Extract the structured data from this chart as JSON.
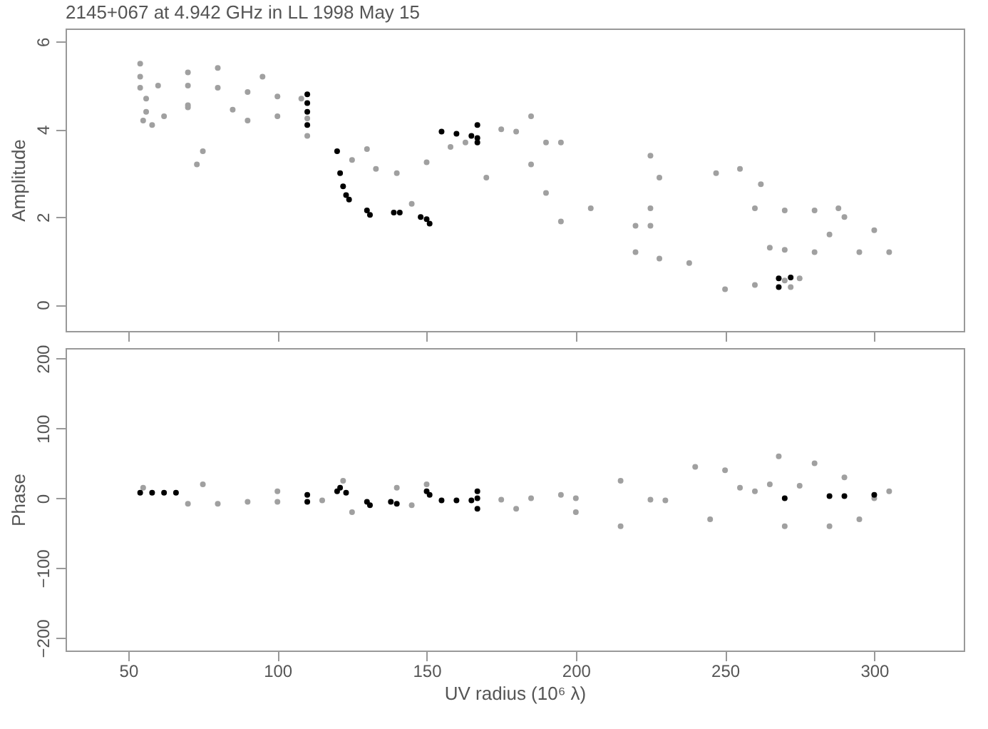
{
  "chart_data": [
    {
      "type": "scatter",
      "title": "2145+067 at 4.942 GHz in LL  1998 May 15",
      "ylabel": "Amplitude",
      "xlim": [
        29,
        330
      ],
      "xticks": [
        50,
        100,
        150,
        200,
        250,
        300
      ],
      "ylim": [
        -0.6,
        6.3
      ],
      "yticks": [
        0,
        2,
        4,
        6
      ],
      "tick_labels": "y",
      "marker": "circle",
      "series": [
        {
          "color": "#a0a0a0",
          "x": [
            54,
            60,
            70,
            80,
            90,
            100,
            108,
            56,
            70,
            85,
            100,
            110,
            70,
            90,
            110,
            130,
            150,
            170,
            190,
            205,
            125,
            133,
            140,
            54,
            54,
            55,
            56,
            58,
            62,
            70,
            80,
            95,
            75,
            73,
            145,
            158,
            163,
            175,
            180,
            195,
            190,
            185,
            185,
            195,
            225,
            228,
            225,
            220,
            225,
            220,
            228,
            238,
            247,
            255,
            262,
            260,
            270,
            280,
            288,
            290,
            265,
            270,
            280,
            295,
            305,
            300,
            285,
            250,
            260,
            270,
            272,
            275
          ],
          "values": [
            4.95,
            5.0,
            5.0,
            4.95,
            4.85,
            4.75,
            4.7,
            4.7,
            4.55,
            4.45,
            4.3,
            4.25,
            4.5,
            4.2,
            3.85,
            3.55,
            3.25,
            2.9,
            2.55,
            2.2,
            3.3,
            3.1,
            3.0,
            5.5,
            5.2,
            4.2,
            4.4,
            4.1,
            4.3,
            5.3,
            5.4,
            5.2,
            3.5,
            3.2,
            2.3,
            3.6,
            3.7,
            4.0,
            3.95,
            3.7,
            3.7,
            4.3,
            3.2,
            1.9,
            3.4,
            2.9,
            2.2,
            1.8,
            1.8,
            1.2,
            1.05,
            0.95,
            3.0,
            3.1,
            2.75,
            2.2,
            2.15,
            2.15,
            2.2,
            2.0,
            1.3,
            1.25,
            1.2,
            1.2,
            1.2,
            1.7,
            1.6,
            0.35,
            0.45,
            0.55,
            0.4,
            0.6
          ]
        },
        {
          "color": "#000000",
          "x": [
            110,
            110,
            110,
            110,
            120,
            121,
            122,
            123,
            124,
            130,
            131,
            139,
            141,
            148,
            150,
            151,
            155,
            160,
            165,
            167,
            167,
            167,
            268,
            272,
            268
          ],
          "values": [
            4.8,
            4.6,
            4.4,
            4.1,
            3.5,
            3.0,
            2.7,
            2.5,
            2.4,
            2.15,
            2.05,
            2.1,
            2.1,
            2.0,
            1.95,
            1.85,
            3.95,
            3.9,
            3.85,
            4.1,
            3.8,
            3.7,
            0.6,
            0.62,
            0.4
          ]
        }
      ]
    },
    {
      "type": "scatter",
      "xlabel": "UV radius  (10⁶ λ)",
      "ylabel": "Phase",
      "xlim": [
        29,
        330
      ],
      "xticks": [
        50,
        100,
        150,
        200,
        250,
        300
      ],
      "ylim": [
        -218,
        215
      ],
      "yticks": [
        -200,
        -100,
        0,
        100,
        200
      ],
      "marker": "circle",
      "series": [
        {
          "color": "#a0a0a0",
          "x": [
            55,
            70,
            80,
            90,
            100,
            115,
            122,
            125,
            140,
            145,
            150,
            175,
            185,
            195,
            200,
            215,
            215,
            225,
            230,
            240,
            245,
            250,
            255,
            260,
            265,
            268,
            270,
            275,
            280,
            285,
            290,
            295,
            300,
            305,
            200,
            180,
            100,
            75
          ],
          "values": [
            15,
            -8,
            -8,
            -5,
            -5,
            -3,
            25,
            -20,
            15,
            -10,
            20,
            -2,
            0,
            5,
            0,
            -40,
            25,
            -2,
            -3,
            45,
            -30,
            40,
            15,
            10,
            20,
            60,
            -40,
            18,
            50,
            -40,
            30,
            -30,
            0,
            10,
            -20,
            -15,
            10,
            20
          ]
        },
        {
          "color": "#000000",
          "x": [
            54,
            58,
            62,
            66,
            110,
            110,
            120,
            121,
            123,
            130,
            131,
            138,
            140,
            150,
            151,
            155,
            160,
            165,
            167,
            167,
            167,
            270,
            285,
            290,
            300
          ],
          "values": [
            8,
            8,
            8,
            8,
            5,
            -5,
            10,
            15,
            8,
            -5,
            -10,
            -5,
            -8,
            10,
            5,
            -3,
            -3,
            -3,
            0,
            -15,
            10,
            0,
            3,
            3,
            5
          ]
        }
      ]
    }
  ]
}
